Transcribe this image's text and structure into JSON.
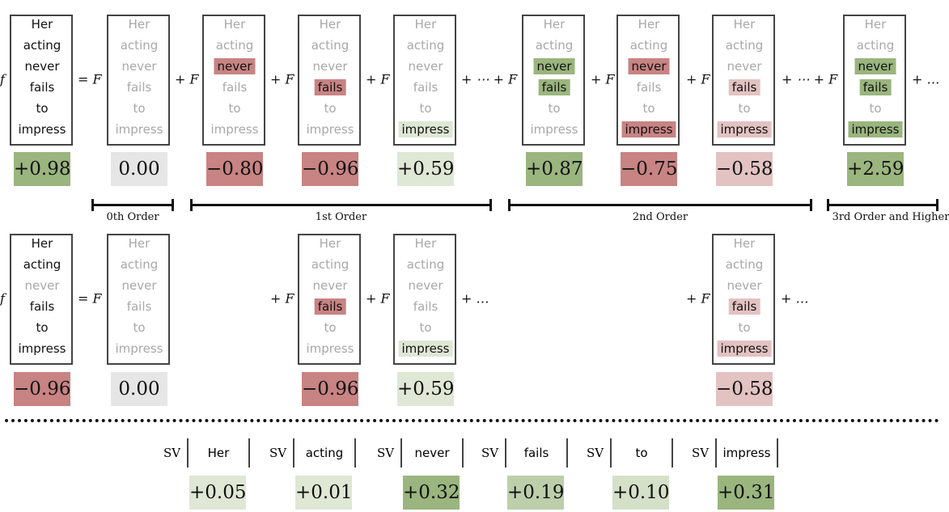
{
  "words": [
    "Her",
    "acting",
    "never",
    "fails",
    "to",
    "impress"
  ],
  "colors": {
    "strong_green": "#9ab57e",
    "light_green": "#dfe7d5",
    "mid_green": "#bccfaa",
    "pale_green": "#d5e0c8",
    "strong_red": "#c88383",
    "light_red": "#e3c2c2",
    "gray": "#e6e6e6",
    "inactive_text": "#a8a8a8"
  },
  "row1": {
    "columns": [
      {
        "op": "f",
        "active": [
          0,
          1,
          2,
          3,
          4,
          5
        ],
        "highlight": {},
        "value": "+0.98",
        "value_color": "strong_green"
      },
      {
        "op": "= F",
        "active": [],
        "highlight": {},
        "value": "0.00",
        "value_color": "gray"
      },
      {
        "op": "+ F",
        "active": [
          2
        ],
        "highlight": {
          "2": "strong_red"
        },
        "value": "−0.80",
        "value_color": "strong_red"
      },
      {
        "op": "+ F",
        "active": [
          3
        ],
        "highlight": {
          "3": "strong_red"
        },
        "value": "−0.96",
        "value_color": "strong_red"
      },
      {
        "op": "+ F",
        "active": [
          5
        ],
        "highlight": {
          "5": "light_green"
        },
        "value": "+0.59",
        "value_color": "light_green"
      },
      {
        "op": "+ ⋯ + F",
        "active": [
          2,
          3
        ],
        "highlight": {
          "2": "strong_green",
          "3": "strong_green"
        },
        "value": "+0.87",
        "value_color": "strong_green"
      },
      {
        "op": "+ F",
        "active": [
          2,
          5
        ],
        "highlight": {
          "2": "strong_red",
          "5": "strong_red"
        },
        "value": "−0.75",
        "value_color": "strong_red"
      },
      {
        "op": "+ F",
        "active": [
          3,
          5
        ],
        "highlight": {
          "3": "light_red",
          "5": "light_red"
        },
        "value": "−0.58",
        "value_color": "light_red"
      },
      {
        "op": "+ ⋯ + F",
        "active": [
          2,
          3,
          5
        ],
        "highlight": {
          "2": "strong_green",
          "3": "strong_green",
          "5": "strong_green"
        },
        "value": "+2.59",
        "value_color": "strong_green"
      }
    ],
    "trailing": "+ …"
  },
  "orders": [
    "0th Order",
    "1st Order",
    "2nd Order",
    "3rd Order and Higher"
  ],
  "row2": {
    "columns": [
      {
        "op": "f",
        "active": [
          0,
          1,
          3,
          4,
          5
        ],
        "highlight": {},
        "value": "−0.96",
        "value_color": "strong_red"
      },
      {
        "op": "= F",
        "active": [],
        "highlight": {},
        "value": "0.00",
        "value_color": "gray"
      },
      {
        "op": "+ F",
        "active": [
          3
        ],
        "highlight": {
          "3": "strong_red"
        },
        "value": "−0.96",
        "value_color": "strong_red"
      },
      {
        "op": "+ F",
        "active": [
          5
        ],
        "highlight": {
          "5": "light_green"
        },
        "value": "+0.59",
        "value_color": "light_green"
      },
      {
        "op": "+ F",
        "active": [
          3,
          5
        ],
        "highlight": {
          "3": "light_red",
          "5": "light_red"
        },
        "value": "−0.58",
        "value_color": "light_red"
      }
    ],
    "trailing": [
      "+ …",
      "+ …"
    ]
  },
  "shapley": {
    "label": "SV",
    "items": [
      {
        "word": "Her",
        "value": "+0.05",
        "value_color": "light_green"
      },
      {
        "word": "acting",
        "value": "+0.01",
        "value_color": "light_green"
      },
      {
        "word": "never",
        "value": "+0.32",
        "value_color": "strong_green"
      },
      {
        "word": "fails",
        "value": "+0.19",
        "value_color": "mid_green"
      },
      {
        "word": "to",
        "value": "+0.10",
        "value_color": "pale_green"
      },
      {
        "word": "impress",
        "value": "+0.31",
        "value_color": "strong_green"
      }
    ]
  }
}
